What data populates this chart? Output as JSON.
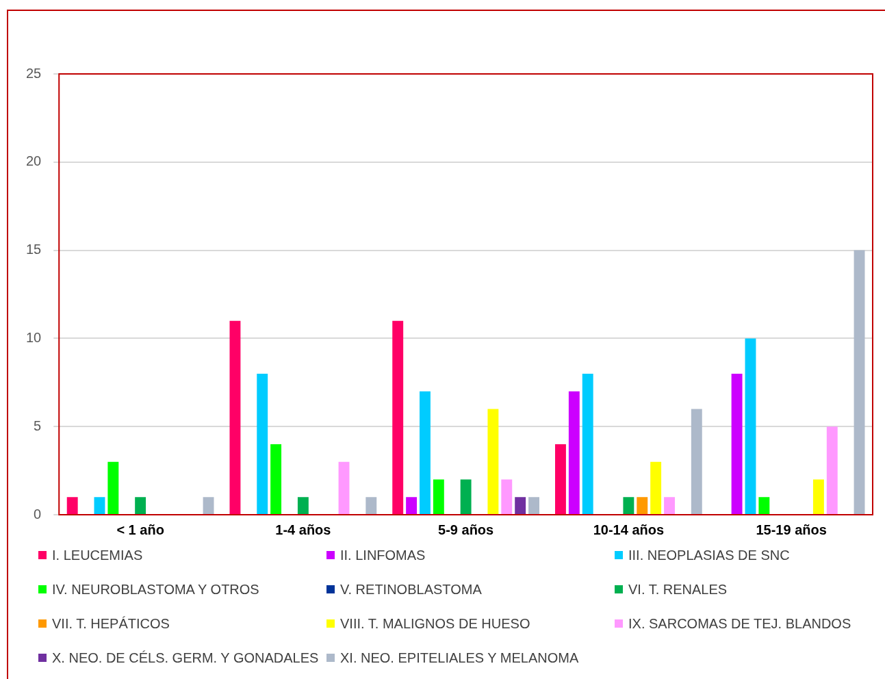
{
  "chart_data": {
    "type": "bar",
    "categories": [
      "< 1 año",
      "1-4 años",
      "5-9 años",
      "10-14 años",
      "15-19 años"
    ],
    "series": [
      {
        "name": "I. LEUCEMIAS",
        "color": "#ff0066",
        "values": [
          1,
          11,
          11,
          4,
          0
        ]
      },
      {
        "name": "II. LINFOMAS",
        "color": "#cc00ff",
        "values": [
          0,
          0,
          1,
          7,
          8
        ]
      },
      {
        "name": "III. NEOPLASIAS DE SNC",
        "color": "#00ccff",
        "values": [
          1,
          8,
          7,
          8,
          10
        ]
      },
      {
        "name": "IV. NEUROBLASTOMA Y OTROS",
        "color": "#00ff00",
        "values": [
          3,
          4,
          2,
          0,
          1
        ]
      },
      {
        "name": "V. RETINOBLASTOMA",
        "color": "#003399",
        "values": [
          0,
          0,
          0,
          0,
          0
        ]
      },
      {
        "name": "VI. T. RENALES",
        "color": "#00b050",
        "values": [
          1,
          1,
          2,
          1,
          0
        ]
      },
      {
        "name": "VII. T. HEPÁTICOS",
        "color": "#ff9900",
        "values": [
          0,
          0,
          0,
          1,
          0
        ]
      },
      {
        "name": "VIII. T. MALIGNOS DE HUESO",
        "color": "#ffff00",
        "values": [
          0,
          0,
          6,
          3,
          2
        ]
      },
      {
        "name": "IX. SARCOMAS DE TEJ. BLANDOS",
        "color": "#ff99ff",
        "values": [
          0,
          3,
          2,
          1,
          5
        ]
      },
      {
        "name": "X. NEO. DE CÉLS. GERM. Y GONADALES",
        "color": "#7030a0",
        "values": [
          0,
          0,
          1,
          0,
          0
        ]
      },
      {
        "name": "XI. NEO. EPITELIALES Y MELANOMA",
        "color": "#adb9ca",
        "values": [
          1,
          1,
          1,
          6,
          15
        ]
      }
    ],
    "ylim": [
      0,
      25
    ],
    "yticks": [
      0,
      5,
      10,
      15,
      20,
      25
    ],
    "grid": "y",
    "legend": "bottom"
  }
}
